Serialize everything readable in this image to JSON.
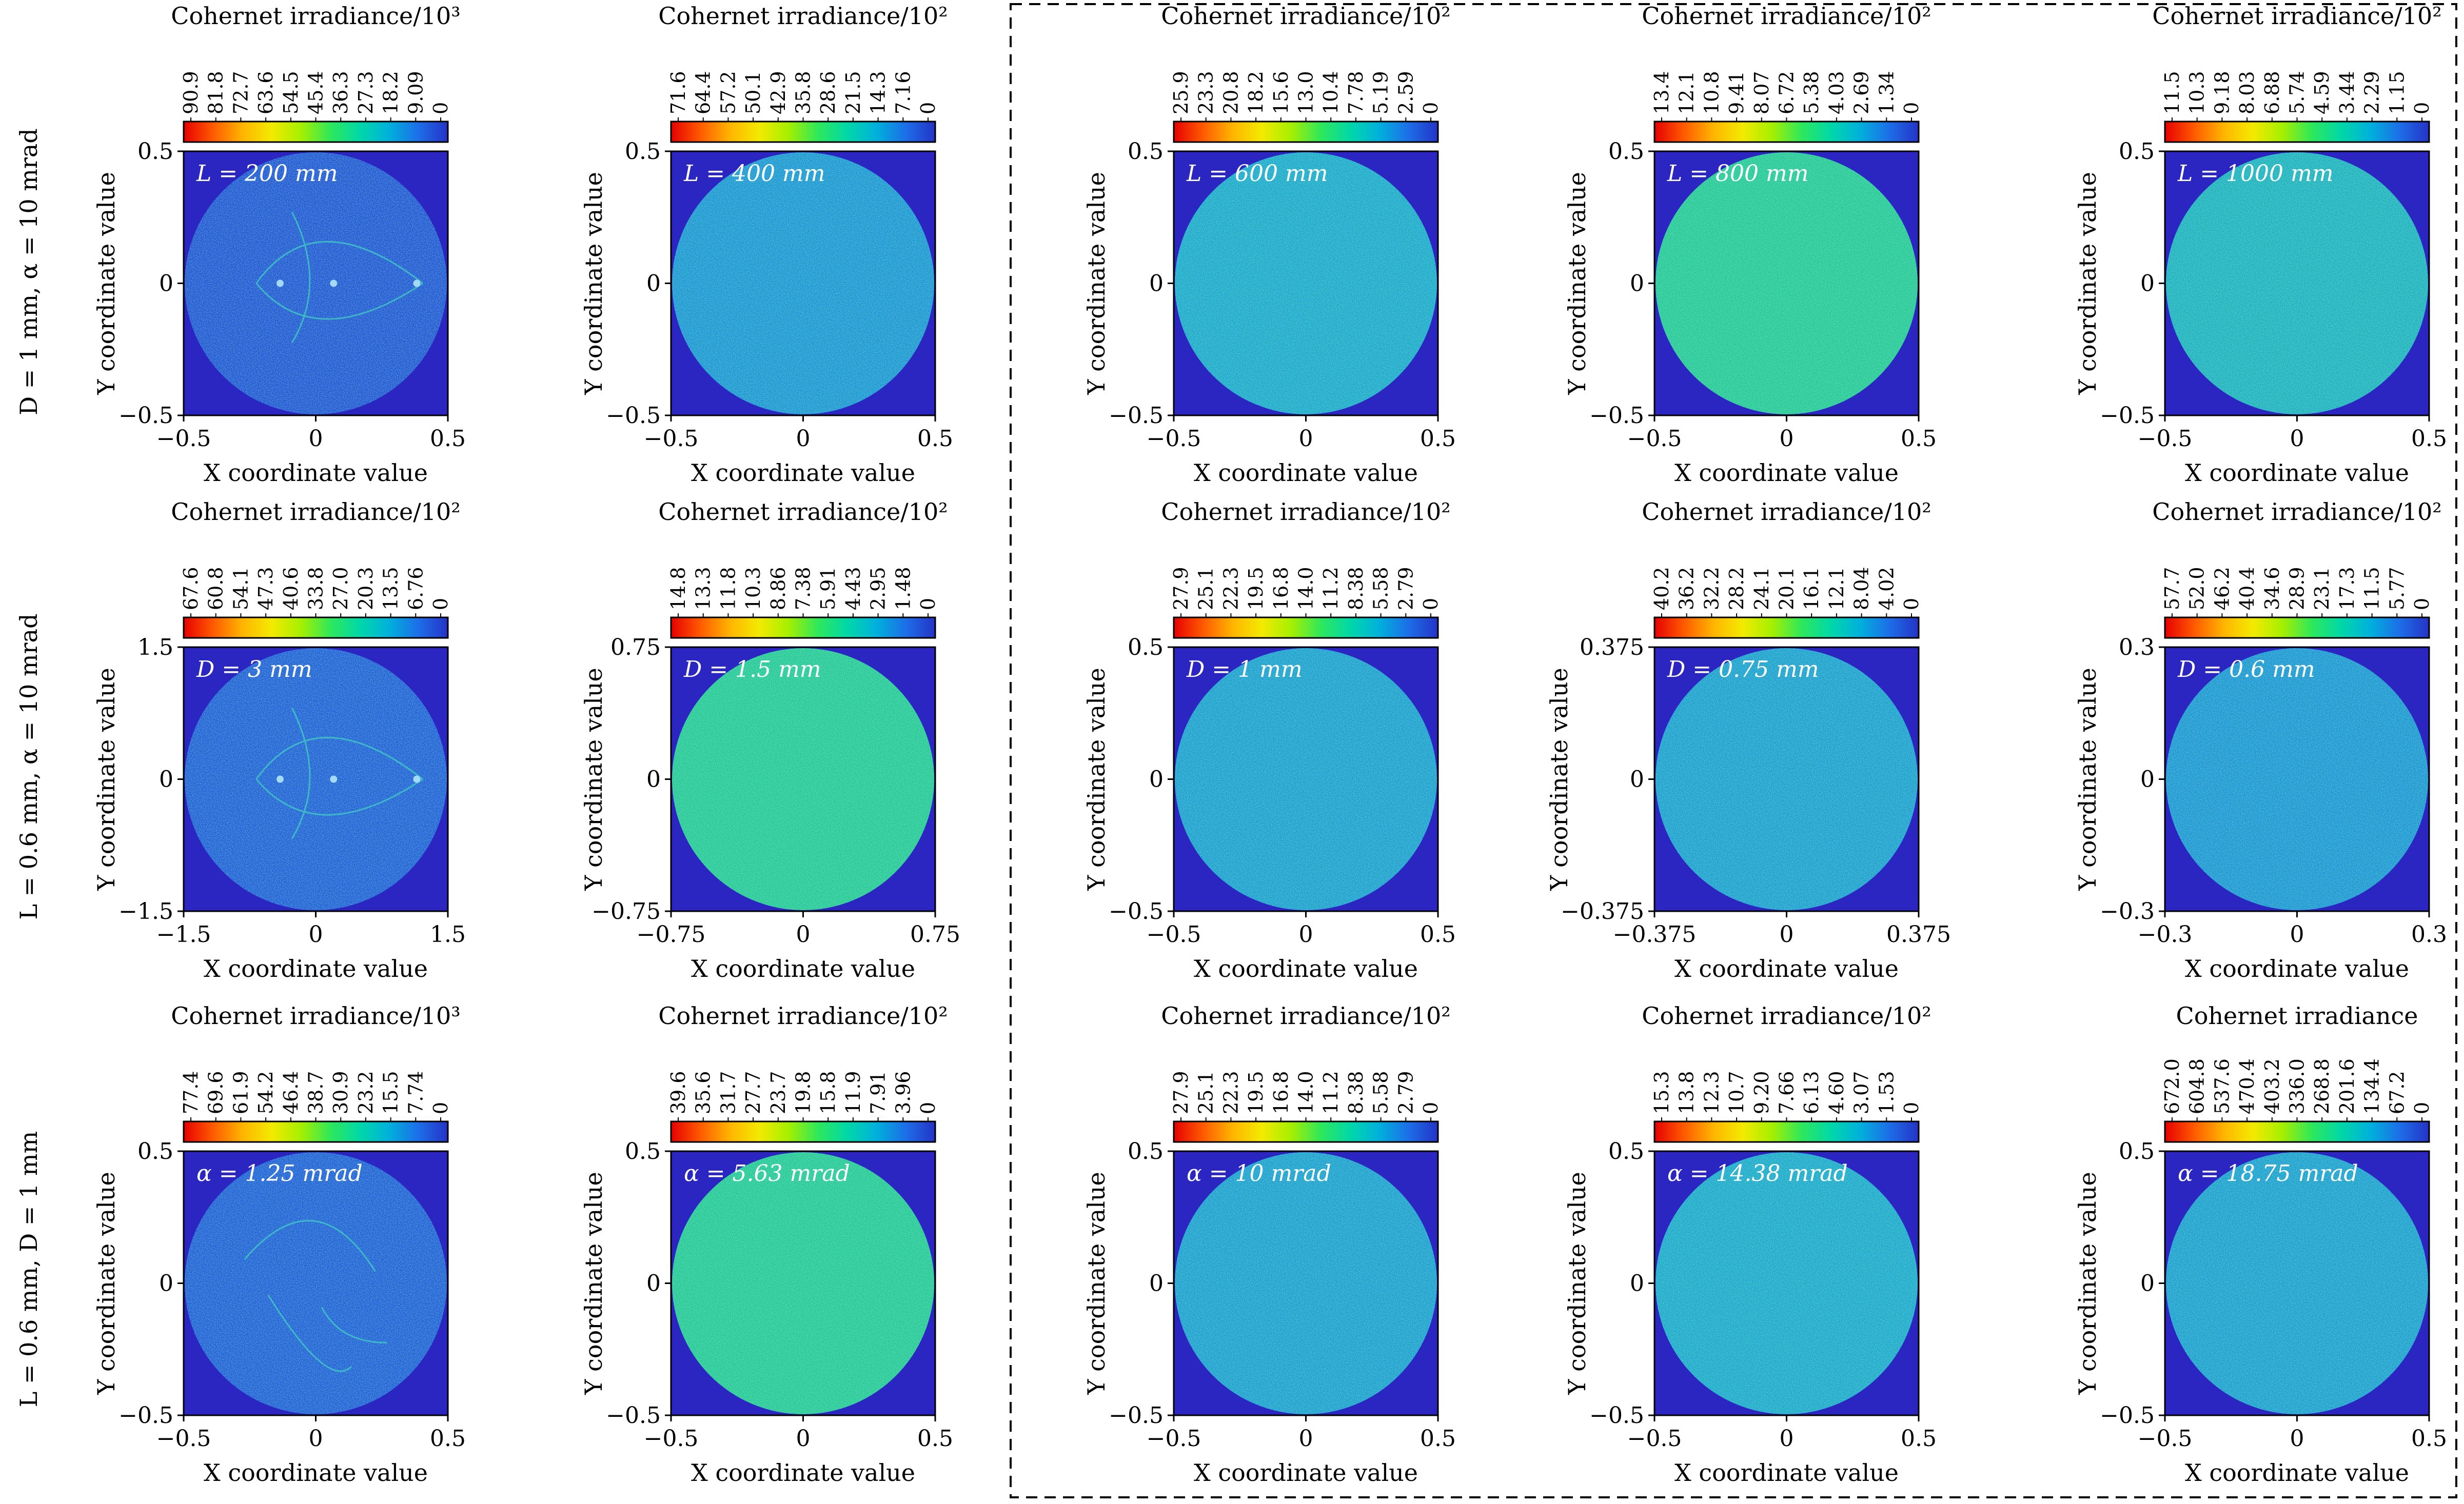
{
  "figure": {
    "colors": {
      "background_plot": "#2b25c2",
      "frame": "#000000",
      "annotation_text": "#ffffff",
      "dashed_box": "#000000"
    },
    "colorbar_gradient": [
      "#e60000",
      "#ff5a00",
      "#ffb400",
      "#f3ea00",
      "#a6ef00",
      "#2ee85a",
      "#00d8a8",
      "#00b0dc",
      "#1d6ee8",
      "#2433c6"
    ],
    "axis_labels": {
      "x": "X coordinate value",
      "y": "Y coordinate value"
    },
    "row_labels": [
      "D = 1 mm, α = 10 mrad",
      "L = 0.6 mm, α = 10 mrad",
      "L = 0.6 mm, D = 1 mm"
    ]
  },
  "chart_data": [
    {
      "type": "heatmap",
      "row": 1,
      "col": 1,
      "annotation": "L = 200 mm",
      "colorbar_title": "Cohernet irradiance/10³",
      "colorbar_ticks": [
        "90.9",
        "81.8",
        "72.7",
        "63.6",
        "54.5",
        "45.4",
        "36.3",
        "27.3",
        "18.2",
        "9.09",
        "0"
      ],
      "xlim": [
        -0.5,
        0.5
      ],
      "ylim": [
        -0.5,
        0.5
      ],
      "xticks": [
        "−0.5",
        "0",
        "0.5"
      ],
      "yticks": [
        "−0.5",
        "0",
        "0.5"
      ],
      "pattern": "caustic",
      "mean_level": 0.88
    },
    {
      "type": "heatmap",
      "row": 1,
      "col": 2,
      "annotation": "L = 400 mm",
      "colorbar_title": "Cohernet irradiance/10²",
      "colorbar_ticks": [
        "71.6",
        "64.4",
        "57.2",
        "50.1",
        "42.9",
        "35.8",
        "28.6",
        "21.5",
        "14.3",
        "7.16",
        "0"
      ],
      "xlim": [
        -0.5,
        0.5
      ],
      "ylim": [
        -0.5,
        0.5
      ],
      "xticks": [
        "−0.5",
        "0",
        "0.5"
      ],
      "yticks": [
        "−0.5",
        "0",
        "0.5"
      ],
      "pattern": "weak-caustic",
      "mean_level": 0.74
    },
    {
      "type": "heatmap",
      "row": 1,
      "col": 3,
      "annotation": "L = 600 mm",
      "colorbar_title": "Cohernet irradiance/10²",
      "colorbar_ticks": [
        "25.9",
        "23.3",
        "20.8",
        "18.2",
        "15.6",
        "13.0",
        "10.4",
        "7.78",
        "5.19",
        "2.59",
        "0"
      ],
      "xlim": [
        -0.5,
        0.5
      ],
      "ylim": [
        -0.5,
        0.5
      ],
      "xticks": [
        "−0.5",
        "0",
        "0.5"
      ],
      "yticks": [
        "−0.5",
        "0",
        "0.5"
      ],
      "pattern": "uniform",
      "mean_level": 0.7
    },
    {
      "type": "heatmap",
      "row": 1,
      "col": 4,
      "annotation": "L = 800 mm",
      "colorbar_title": "Cohernet irradiance/10²",
      "colorbar_ticks": [
        "13.4",
        "12.1",
        "10.8",
        "9.41",
        "8.07",
        "6.72",
        "5.38",
        "4.03",
        "2.69",
        "1.34",
        "0"
      ],
      "xlim": [
        -0.5,
        0.5
      ],
      "ylim": [
        -0.5,
        0.5
      ],
      "xticks": [
        "−0.5",
        "0",
        "0.5"
      ],
      "yticks": [
        "−0.5",
        "0",
        "0.5"
      ],
      "pattern": "uniform",
      "mean_level": 0.62
    },
    {
      "type": "heatmap",
      "row": 1,
      "col": 5,
      "annotation": "L = 1000 mm",
      "colorbar_title": "Cohernet irradiance/10²",
      "colorbar_ticks": [
        "11.5",
        "10.3",
        "9.18",
        "8.03",
        "6.88",
        "5.74",
        "4.59",
        "3.44",
        "2.29",
        "1.15",
        "0"
      ],
      "xlim": [
        -0.5,
        0.5
      ],
      "ylim": [
        -0.5,
        0.5
      ],
      "xticks": [
        "−0.5",
        "0",
        "0.5"
      ],
      "yticks": [
        "−0.5",
        "0",
        "0.5"
      ],
      "pattern": "uniform",
      "mean_level": 0.68
    },
    {
      "type": "heatmap",
      "row": 2,
      "col": 1,
      "annotation": "D = 3 mm",
      "colorbar_title": "Cohernet irradiance/10²",
      "colorbar_ticks": [
        "67.6",
        "60.8",
        "54.1",
        "47.3",
        "40.6",
        "33.8",
        "27.0",
        "20.3",
        "13.5",
        "6.76",
        "0"
      ],
      "xlim": [
        -1.5,
        1.5
      ],
      "ylim": [
        -1.5,
        1.5
      ],
      "xticks": [
        "−1.5",
        "0",
        "1.5"
      ],
      "yticks": [
        "−1.5",
        "0",
        "1.5"
      ],
      "pattern": "caustic",
      "mean_level": 0.86
    },
    {
      "type": "heatmap",
      "row": 2,
      "col": 2,
      "annotation": "D = 1.5 mm",
      "colorbar_title": "Cohernet irradiance/10²",
      "colorbar_ticks": [
        "14.8",
        "13.3",
        "11.8",
        "10.3",
        "8.86",
        "7.38",
        "5.91",
        "4.43",
        "2.95",
        "1.48",
        "0"
      ],
      "xlim": [
        -0.75,
        0.75
      ],
      "ylim": [
        -0.75,
        0.75
      ],
      "xticks": [
        "−0.75",
        "0",
        "0.75"
      ],
      "yticks": [
        "−0.75",
        "0",
        "0.75"
      ],
      "pattern": "weak-caustic",
      "mean_level": 0.62
    },
    {
      "type": "heatmap",
      "row": 2,
      "col": 3,
      "annotation": "D = 1 mm",
      "colorbar_title": "Cohernet irradiance/10²",
      "colorbar_ticks": [
        "27.9",
        "25.1",
        "22.3",
        "19.5",
        "16.8",
        "14.0",
        "11.2",
        "8.38",
        "5.58",
        "2.79",
        "0"
      ],
      "xlim": [
        -0.5,
        0.5
      ],
      "ylim": [
        -0.5,
        0.5
      ],
      "xticks": [
        "−0.5",
        "0",
        "0.5"
      ],
      "yticks": [
        "−0.5",
        "0",
        "0.5"
      ],
      "pattern": "uniform",
      "mean_level": 0.72
    },
    {
      "type": "heatmap",
      "row": 2,
      "col": 4,
      "annotation": "D = 0.75 mm",
      "colorbar_title": "Cohernet irradiance/10²",
      "colorbar_ticks": [
        "40.2",
        "36.2",
        "32.2",
        "28.2",
        "24.1",
        "20.1",
        "16.1",
        "12.1",
        "8.04",
        "4.02",
        "0"
      ],
      "xlim": [
        -0.375,
        0.375
      ],
      "ylim": [
        -0.375,
        0.375
      ],
      "xticks": [
        "−0.375",
        "0",
        "0.375"
      ],
      "yticks": [
        "−0.375",
        "0",
        "0.375"
      ],
      "pattern": "uniform",
      "mean_level": 0.72
    },
    {
      "type": "heatmap",
      "row": 2,
      "col": 5,
      "annotation": "D = 0.6 mm",
      "colorbar_title": "Cohernet irradiance/10²",
      "colorbar_ticks": [
        "57.7",
        "52.0",
        "46.2",
        "40.4",
        "34.6",
        "28.9",
        "23.1",
        "17.3",
        "11.5",
        "5.77",
        "0"
      ],
      "xlim": [
        -0.3,
        0.3
      ],
      "ylim": [
        -0.3,
        0.3
      ],
      "xticks": [
        "−0.3",
        "0",
        "0.3"
      ],
      "yticks": [
        "−0.3",
        "0",
        "0.3"
      ],
      "pattern": "uniform",
      "mean_level": 0.74
    },
    {
      "type": "heatmap",
      "row": 3,
      "col": 1,
      "annotation": "α = 1.25 mrad",
      "colorbar_title": "Cohernet irradiance/10³",
      "colorbar_ticks": [
        "77.4",
        "69.6",
        "61.9",
        "54.2",
        "46.4",
        "38.7",
        "30.9",
        "23.2",
        "15.5",
        "7.74",
        "0"
      ],
      "xlim": [
        -0.5,
        0.5
      ],
      "ylim": [
        -0.5,
        0.5
      ],
      "xticks": [
        "−0.5",
        "0",
        "0.5"
      ],
      "yticks": [
        "−0.5",
        "0",
        "0.5"
      ],
      "pattern": "caustic-ring",
      "mean_level": 0.86
    },
    {
      "type": "heatmap",
      "row": 3,
      "col": 2,
      "annotation": "α = 5.63 mrad",
      "colorbar_title": "Cohernet irradiance/10²",
      "colorbar_ticks": [
        "39.6",
        "35.6",
        "31.7",
        "27.7",
        "23.7",
        "19.8",
        "15.8",
        "11.9",
        "7.91",
        "3.96",
        "0"
      ],
      "xlim": [
        -0.5,
        0.5
      ],
      "ylim": [
        -0.5,
        0.5
      ],
      "xticks": [
        "−0.5",
        "0",
        "0.5"
      ],
      "yticks": [
        "−0.5",
        "0",
        "0.5"
      ],
      "pattern": "weak-caustic",
      "mean_level": 0.62
    },
    {
      "type": "heatmap",
      "row": 3,
      "col": 3,
      "annotation": "α = 10 mrad",
      "colorbar_title": "Cohernet irradiance/10²",
      "colorbar_ticks": [
        "27.9",
        "25.1",
        "22.3",
        "19.5",
        "16.8",
        "14.0",
        "11.2",
        "8.38",
        "5.58",
        "2.79",
        "0"
      ],
      "xlim": [
        -0.5,
        0.5
      ],
      "ylim": [
        -0.5,
        0.5
      ],
      "xticks": [
        "−0.5",
        "0",
        "0.5"
      ],
      "yticks": [
        "−0.5",
        "0",
        "0.5"
      ],
      "pattern": "uniform",
      "mean_level": 0.72
    },
    {
      "type": "heatmap",
      "row": 3,
      "col": 4,
      "annotation": "α = 14.38 mrad",
      "colorbar_title": "Cohernet irradiance/10²",
      "colorbar_ticks": [
        "15.3",
        "13.8",
        "12.3",
        "10.7",
        "9.20",
        "7.66",
        "6.13",
        "4.60",
        "3.07",
        "1.53",
        "0"
      ],
      "xlim": [
        -0.5,
        0.5
      ],
      "ylim": [
        -0.5,
        0.5
      ],
      "xticks": [
        "−0.5",
        "0",
        "0.5"
      ],
      "yticks": [
        "−0.5",
        "0",
        "0.5"
      ],
      "pattern": "uniform",
      "mean_level": 0.7
    },
    {
      "type": "heatmap",
      "row": 3,
      "col": 5,
      "annotation": "α = 18.75 mrad",
      "colorbar_title": "Cohernet irradiance",
      "colorbar_ticks": [
        "672.0",
        "604.8",
        "537.6",
        "470.4",
        "403.2",
        "336.0",
        "268.8",
        "201.6",
        "134.4",
        "67.2",
        "0"
      ],
      "xlim": [
        -0.5,
        0.5
      ],
      "ylim": [
        -0.5,
        0.5
      ],
      "xticks": [
        "−0.5",
        "0",
        "0.5"
      ],
      "yticks": [
        "−0.5",
        "0",
        "0.5"
      ],
      "pattern": "uniform",
      "mean_level": 0.72
    }
  ]
}
